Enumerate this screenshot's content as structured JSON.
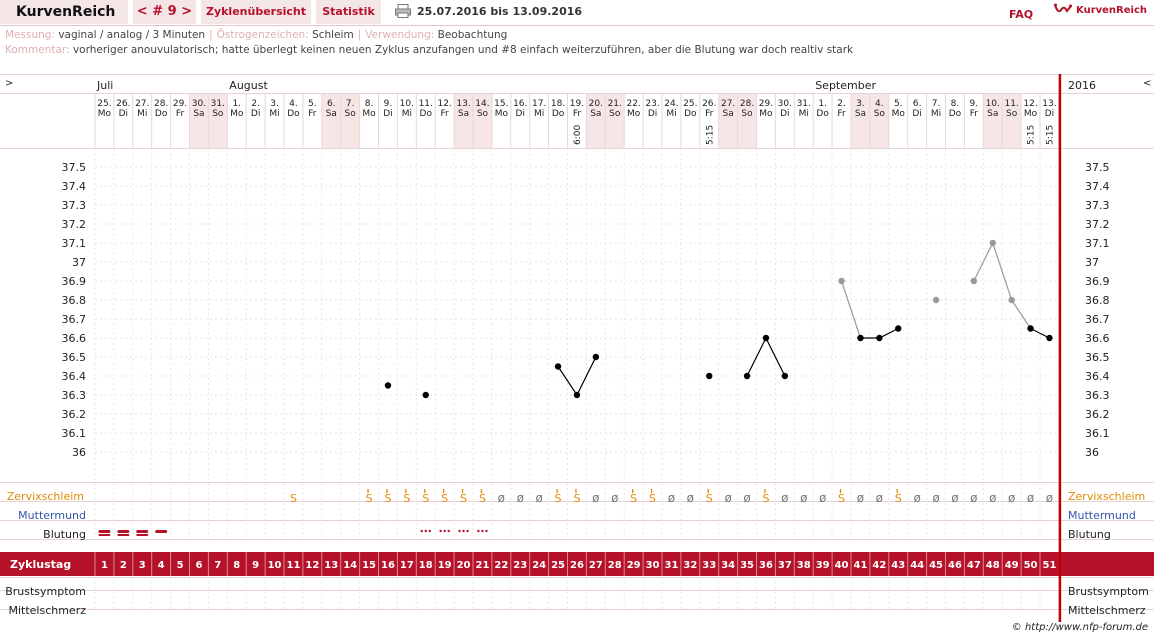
{
  "toolbar": {
    "app_name": "KurvenReich",
    "cycle_label": "< # 9 >",
    "overview_label": "Zyklenübersicht",
    "stats_label": "Statistik",
    "date_range": "25.07.2016 bis 13.09.2016",
    "faq_label": "FAQ",
    "logo_text": "KurvenReich"
  },
  "info": {
    "measure_label": "Messung:",
    "measure_value": "vaginal / analog / 3 Minuten",
    "estrogen_label": "Östrogenzeichen:",
    "estrogen_value": "Schleim",
    "usage_label": "Verwendung:",
    "usage_value": "Beobachtung",
    "comment_label": "Kommentar:",
    "comment_value": "vorheriger anouvulatorisch; hatte überlegt keinen neuen Zyklus anzufangen und #8 einfach weiterzuführen, aber die Blutung war doch realtiv stark"
  },
  "colors": {
    "accent": "#b5122a",
    "weekend": "#f7e6e6",
    "temp_line": "#000000",
    "ignored_temp": "#999999",
    "mucus": "#e08a00",
    "muttermund": "#3355aa"
  },
  "grid": {
    "left_arrow": ">",
    "right_arrow": "<",
    "year": "2016"
  },
  "months": [
    {
      "label": "Juli",
      "day": 0
    },
    {
      "label": "August",
      "day": 7
    },
    {
      "label": "September",
      "day": 38
    }
  ],
  "days": [
    {
      "d": "25.",
      "w": "Mo"
    },
    {
      "d": "26.",
      "w": "Di"
    },
    {
      "d": "27.",
      "w": "Mi"
    },
    {
      "d": "28.",
      "w": "Do"
    },
    {
      "d": "29.",
      "w": "Fr"
    },
    {
      "d": "30.",
      "w": "Sa"
    },
    {
      "d": "31.",
      "w": "So"
    },
    {
      "d": "1.",
      "w": "Mo"
    },
    {
      "d": "2.",
      "w": "Di"
    },
    {
      "d": "3.",
      "w": "Mi"
    },
    {
      "d": "4.",
      "w": "Do"
    },
    {
      "d": "5.",
      "w": "Fr"
    },
    {
      "d": "6.",
      "w": "Sa"
    },
    {
      "d": "7.",
      "w": "So"
    },
    {
      "d": "8.",
      "w": "Mo"
    },
    {
      "d": "9.",
      "w": "Di"
    },
    {
      "d": "10.",
      "w": "Mi"
    },
    {
      "d": "11.",
      "w": "Do"
    },
    {
      "d": "12.",
      "w": "Fr"
    },
    {
      "d": "13.",
      "w": "Sa"
    },
    {
      "d": "14.",
      "w": "So"
    },
    {
      "d": "15.",
      "w": "Mo"
    },
    {
      "d": "16.",
      "w": "Di"
    },
    {
      "d": "17.",
      "w": "Mi"
    },
    {
      "d": "18.",
      "w": "Do"
    },
    {
      "d": "19.",
      "w": "Fr"
    },
    {
      "d": "20.",
      "w": "Sa"
    },
    {
      "d": "21.",
      "w": "So"
    },
    {
      "d": "22.",
      "w": "Mo"
    },
    {
      "d": "23.",
      "w": "Di"
    },
    {
      "d": "24.",
      "w": "Mi"
    },
    {
      "d": "25.",
      "w": "Do"
    },
    {
      "d": "26.",
      "w": "Fr"
    },
    {
      "d": "27.",
      "w": "Sa"
    },
    {
      "d": "28.",
      "w": "So"
    },
    {
      "d": "29.",
      "w": "Mo"
    },
    {
      "d": "30.",
      "w": "Di"
    },
    {
      "d": "31.",
      "w": "Mi"
    },
    {
      "d": "1.",
      "w": "Do"
    },
    {
      "d": "2.",
      "w": "Fr"
    },
    {
      "d": "3.",
      "w": "Sa"
    },
    {
      "d": "4.",
      "w": "So"
    },
    {
      "d": "5.",
      "w": "Mo"
    },
    {
      "d": "6.",
      "w": "Di"
    },
    {
      "d": "7.",
      "w": "Mi"
    },
    {
      "d": "8.",
      "w": "Do"
    },
    {
      "d": "9.",
      "w": "Fr"
    },
    {
      "d": "10.",
      "w": "Sa"
    },
    {
      "d": "11.",
      "w": "So"
    },
    {
      "d": "12.",
      "w": "Mo"
    },
    {
      "d": "13.",
      "w": "Di"
    }
  ],
  "highlight_days": [
    5,
    6,
    12,
    13,
    19,
    20,
    26,
    27,
    33,
    34,
    40,
    41,
    47,
    48
  ],
  "times": [
    {
      "day": 25,
      "t": "6:00"
    },
    {
      "day": 32,
      "t": "5:15"
    },
    {
      "day": 49,
      "t": "5:15"
    },
    {
      "day": 50,
      "t": "5:15"
    }
  ],
  "chart_data": {
    "type": "line",
    "y_ticks": [
      "37.5",
      "37.4",
      "37.3",
      "37.2",
      "37.1",
      "37",
      "36.9",
      "36.8",
      "36.7",
      "36.6",
      "36.5",
      "36.4",
      "36.3",
      "36.2",
      "36.1",
      "36"
    ],
    "ylim": [
      36.0,
      37.5
    ],
    "series": [
      {
        "points": [
          {
            "day": 15,
            "v": 36.35
          }
        ]
      },
      {
        "points": [
          {
            "day": 17,
            "v": 36.3
          }
        ]
      },
      {
        "points": [
          {
            "day": 24,
            "v": 36.45
          },
          {
            "day": 25,
            "v": 36.3
          },
          {
            "day": 26,
            "v": 36.5
          }
        ]
      },
      {
        "points": [
          {
            "day": 32,
            "v": 36.4
          }
        ]
      },
      {
        "points": [
          {
            "day": 34,
            "v": 36.4
          },
          {
            "day": 35,
            "v": 36.6
          },
          {
            "day": 36,
            "v": 36.4
          }
        ]
      },
      {
        "points": [
          {
            "day": 40,
            "v": 36.6
          },
          {
            "day": 41,
            "v": 36.6
          },
          {
            "day": 42,
            "v": 36.65
          }
        ]
      },
      {
        "points": [
          {
            "day": 49,
            "v": 36.65
          },
          {
            "day": 50,
            "v": 36.6
          }
        ]
      }
    ],
    "ignored": [
      {
        "points": [
          {
            "day": 39,
            "v": 36.9
          },
          {
            "day": 40,
            "v": 36.6
          }
        ]
      },
      {
        "points": [
          {
            "day": 44,
            "v": 36.8
          }
        ]
      },
      {
        "points": [
          {
            "day": 46,
            "v": 36.9
          },
          {
            "day": 47,
            "v": 37.1
          },
          {
            "day": 48,
            "v": 36.8
          },
          {
            "day": 49,
            "v": 36.65
          }
        ]
      }
    ]
  },
  "rows": {
    "mucus_label": "Zervixschleim",
    "muttermund_label": "Muttermund",
    "bleeding_label": "Blutung",
    "cycleday_label": "Zyklustag",
    "breast_label": "Brustsymptom",
    "mittel_label": "Mittelschmerz"
  },
  "mucus": [
    "",
    "",
    "",
    "",
    "",
    "",
    "",
    "",
    "",
    "",
    "S",
    "",
    "",
    "",
    "S+",
    "S+",
    "S+",
    "S+",
    "S+",
    "S+",
    "S+",
    "ø",
    "ø",
    "ø",
    "S+",
    "S+",
    "ø",
    "ø",
    "S+",
    "S+",
    "ø",
    "ø",
    "S+",
    "ø",
    "ø",
    "S+",
    "ø",
    "ø",
    "ø",
    "S+",
    "ø",
    "ø",
    "S+",
    "ø",
    "ø",
    "ø",
    "ø",
    "ø",
    "ø",
    "ø",
    "ø"
  ],
  "bleeding": [
    "heavy",
    "heavy",
    "heavy",
    "heavy2",
    "",
    "",
    "",
    "",
    "",
    "",
    "",
    "",
    "",
    "",
    "",
    "",
    "",
    "spot",
    "spot",
    "spot",
    "spot",
    "",
    "",
    "",
    "",
    "",
    "",
    "",
    "",
    "",
    "",
    "",
    "",
    "",
    "",
    "",
    "",
    "",
    "",
    "",
    "",
    "",
    "",
    "",
    "",
    "",
    "",
    "",
    "",
    "",
    ""
  ],
  "footer": "© http://www.nfp-forum.de"
}
